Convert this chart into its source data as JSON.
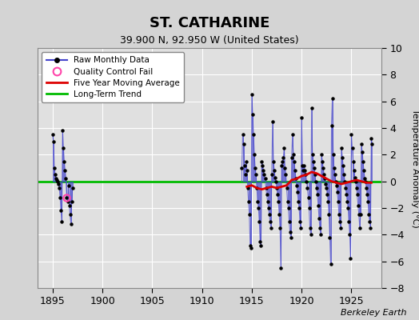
{
  "title": "ST. CATHARINE",
  "subtitle": "39.900 N, 92.950 W (United States)",
  "ylabel": "Temperature Anomaly (°C)",
  "credit": "Berkeley Earth",
  "xlim": [
    1893.5,
    1928.0
  ],
  "ylim": [
    -8,
    10
  ],
  "yticks": [
    -8,
    -6,
    -4,
    -2,
    0,
    2,
    4,
    6,
    8,
    10
  ],
  "xticks": [
    1895,
    1900,
    1905,
    1910,
    1915,
    1920,
    1925
  ],
  "bg_color": "#d4d4d4",
  "plot_bg_color": "#e0e0e0",
  "raw_color": "#4444cc",
  "ma_color": "#dd0000",
  "trend_color": "#00bb00",
  "qc_color": "#ff44aa",
  "raw_data": [
    [
      1895.0,
      3.5
    ],
    [
      1895.083,
      3.0
    ],
    [
      1895.167,
      1.0
    ],
    [
      1895.25,
      0.5
    ],
    [
      1895.333,
      0.2
    ],
    [
      1895.417,
      0.1
    ],
    [
      1895.5,
      0.0
    ],
    [
      1895.583,
      -0.2
    ],
    [
      1895.667,
      -0.5
    ],
    [
      1895.75,
      -1.2
    ],
    [
      1895.833,
      -2.2
    ],
    [
      1895.917,
      -3.0
    ],
    [
      1896.0,
      3.8
    ],
    [
      1896.083,
      2.5
    ],
    [
      1896.167,
      1.5
    ],
    [
      1896.25,
      0.8
    ],
    [
      1896.333,
      0.2
    ],
    [
      1896.417,
      -1.2
    ],
    [
      1896.5,
      -1.5
    ],
    [
      1896.583,
      -0.3
    ],
    [
      1896.667,
      -1.8
    ],
    [
      1896.75,
      -2.5
    ],
    [
      1896.833,
      -3.2
    ],
    [
      1896.917,
      -1.5
    ],
    [
      1897.0,
      -0.5
    ],
    [
      1914.0,
      1.0
    ],
    [
      1914.083,
      3.5
    ],
    [
      1914.167,
      2.8
    ],
    [
      1914.25,
      1.2
    ],
    [
      1914.333,
      0.5
    ],
    [
      1914.417,
      1.5
    ],
    [
      1914.5,
      0.8
    ],
    [
      1914.583,
      -0.5
    ],
    [
      1914.667,
      -1.5
    ],
    [
      1914.75,
      -2.5
    ],
    [
      1914.833,
      -4.8
    ],
    [
      1914.917,
      -5.0
    ],
    [
      1915.0,
      6.5
    ],
    [
      1915.083,
      5.0
    ],
    [
      1915.167,
      3.5
    ],
    [
      1915.25,
      2.0
    ],
    [
      1915.333,
      1.0
    ],
    [
      1915.417,
      0.5
    ],
    [
      1915.5,
      -0.5
    ],
    [
      1915.583,
      -1.5
    ],
    [
      1915.667,
      -2.0
    ],
    [
      1915.75,
      -3.0
    ],
    [
      1915.833,
      -4.5
    ],
    [
      1915.917,
      -4.8
    ],
    [
      1916.0,
      1.5
    ],
    [
      1916.083,
      1.2
    ],
    [
      1916.167,
      0.8
    ],
    [
      1916.25,
      0.5
    ],
    [
      1916.333,
      0.2
    ],
    [
      1916.417,
      -0.5
    ],
    [
      1916.5,
      -1.0
    ],
    [
      1916.583,
      -1.5
    ],
    [
      1916.667,
      -2.0
    ],
    [
      1916.75,
      -2.5
    ],
    [
      1916.833,
      -3.0
    ],
    [
      1916.917,
      -3.5
    ],
    [
      1917.0,
      0.5
    ],
    [
      1917.083,
      4.5
    ],
    [
      1917.167,
      1.5
    ],
    [
      1917.25,
      0.8
    ],
    [
      1917.333,
      0.3
    ],
    [
      1917.417,
      0.0
    ],
    [
      1917.5,
      -0.5
    ],
    [
      1917.583,
      -1.0
    ],
    [
      1917.667,
      -1.5
    ],
    [
      1917.75,
      -2.5
    ],
    [
      1917.833,
      -3.5
    ],
    [
      1917.917,
      -6.5
    ],
    [
      1918.0,
      1.2
    ],
    [
      1918.083,
      1.5
    ],
    [
      1918.167,
      1.8
    ],
    [
      1918.25,
      2.5
    ],
    [
      1918.333,
      1.0
    ],
    [
      1918.417,
      0.5
    ],
    [
      1918.5,
      -0.5
    ],
    [
      1918.583,
      -1.5
    ],
    [
      1918.667,
      -2.0
    ],
    [
      1918.75,
      -3.0
    ],
    [
      1918.833,
      -3.8
    ],
    [
      1918.917,
      -4.2
    ],
    [
      1919.0,
      1.8
    ],
    [
      1919.083,
      3.5
    ],
    [
      1919.167,
      2.0
    ],
    [
      1919.25,
      1.5
    ],
    [
      1919.333,
      0.8
    ],
    [
      1919.417,
      0.2
    ],
    [
      1919.5,
      -0.3
    ],
    [
      1919.583,
      -0.8
    ],
    [
      1919.667,
      -1.5
    ],
    [
      1919.75,
      -2.0
    ],
    [
      1919.833,
      -3.0
    ],
    [
      1919.917,
      -3.5
    ],
    [
      1920.0,
      4.8
    ],
    [
      1920.083,
      1.2
    ],
    [
      1920.167,
      0.8
    ],
    [
      1920.25,
      1.2
    ],
    [
      1920.333,
      0.8
    ],
    [
      1920.417,
      0.5
    ],
    [
      1920.5,
      0.0
    ],
    [
      1920.583,
      -0.5
    ],
    [
      1920.667,
      -1.2
    ],
    [
      1920.75,
      -2.0
    ],
    [
      1920.833,
      -3.5
    ],
    [
      1920.917,
      -4.0
    ],
    [
      1921.0,
      5.5
    ],
    [
      1921.083,
      2.0
    ],
    [
      1921.167,
      1.5
    ],
    [
      1921.25,
      1.0
    ],
    [
      1921.333,
      0.5
    ],
    [
      1921.417,
      0.0
    ],
    [
      1921.5,
      -0.5
    ],
    [
      1921.583,
      -1.0
    ],
    [
      1921.667,
      -1.8
    ],
    [
      1921.75,
      -2.8
    ],
    [
      1921.833,
      -3.5
    ],
    [
      1921.917,
      -4.0
    ],
    [
      1922.0,
      2.0
    ],
    [
      1922.083,
      1.5
    ],
    [
      1922.167,
      1.0
    ],
    [
      1922.25,
      0.5
    ],
    [
      1922.333,
      0.2
    ],
    [
      1922.417,
      -0.2
    ],
    [
      1922.5,
      -0.5
    ],
    [
      1922.583,
      -1.0
    ],
    [
      1922.667,
      -1.5
    ],
    [
      1922.75,
      -2.5
    ],
    [
      1922.833,
      -4.2
    ],
    [
      1922.917,
      -6.2
    ],
    [
      1923.0,
      4.2
    ],
    [
      1923.083,
      6.2
    ],
    [
      1923.167,
      2.0
    ],
    [
      1923.25,
      1.0
    ],
    [
      1923.333,
      0.5
    ],
    [
      1923.417,
      0.0
    ],
    [
      1923.5,
      -0.3
    ],
    [
      1923.583,
      -0.8
    ],
    [
      1923.667,
      -1.5
    ],
    [
      1923.75,
      -2.5
    ],
    [
      1923.833,
      -3.0
    ],
    [
      1923.917,
      -3.5
    ],
    [
      1924.0,
      2.5
    ],
    [
      1924.083,
      1.8
    ],
    [
      1924.167,
      1.2
    ],
    [
      1924.25,
      0.5
    ],
    [
      1924.333,
      0.0
    ],
    [
      1924.417,
      -0.5
    ],
    [
      1924.5,
      -1.0
    ],
    [
      1924.583,
      -1.5
    ],
    [
      1924.667,
      -2.0
    ],
    [
      1924.75,
      -3.0
    ],
    [
      1924.833,
      -4.0
    ],
    [
      1924.917,
      -5.8
    ],
    [
      1925.0,
      3.5
    ],
    [
      1925.083,
      2.5
    ],
    [
      1925.167,
      1.5
    ],
    [
      1925.25,
      0.8
    ],
    [
      1925.333,
      0.3
    ],
    [
      1925.417,
      0.0
    ],
    [
      1925.5,
      -0.5
    ],
    [
      1925.583,
      -1.0
    ],
    [
      1925.667,
      -1.8
    ],
    [
      1925.75,
      -2.5
    ],
    [
      1925.833,
      -3.5
    ],
    [
      1925.917,
      -2.5
    ],
    [
      1926.0,
      2.8
    ],
    [
      1926.083,
      2.2
    ],
    [
      1926.167,
      1.5
    ],
    [
      1926.25,
      0.8
    ],
    [
      1926.333,
      0.2
    ],
    [
      1926.417,
      0.0
    ],
    [
      1926.5,
      -0.5
    ],
    [
      1926.583,
      -1.0
    ],
    [
      1926.667,
      -1.5
    ],
    [
      1926.75,
      -2.5
    ],
    [
      1926.833,
      -3.0
    ],
    [
      1926.917,
      -3.5
    ],
    [
      1927.0,
      3.2
    ],
    [
      1927.083,
      2.8
    ]
  ],
  "segment_breaks": [
    24
  ],
  "qc_fail_points": [
    [
      1896.417,
      -1.2
    ]
  ],
  "moving_avg": [
    [
      1914.5,
      -0.4
    ],
    [
      1915.0,
      -0.3
    ],
    [
      1915.5,
      -0.5
    ],
    [
      1916.0,
      -0.6
    ],
    [
      1916.5,
      -0.5
    ],
    [
      1917.0,
      -0.4
    ],
    [
      1917.5,
      -0.5
    ],
    [
      1918.0,
      -0.4
    ],
    [
      1918.5,
      -0.3
    ],
    [
      1919.0,
      0.1
    ],
    [
      1919.5,
      0.2
    ],
    [
      1920.0,
      0.4
    ],
    [
      1920.5,
      0.5
    ],
    [
      1921.0,
      0.7
    ],
    [
      1921.5,
      0.6
    ],
    [
      1922.0,
      0.4
    ],
    [
      1922.5,
      0.2
    ],
    [
      1923.0,
      0.0
    ],
    [
      1923.5,
      -0.1
    ],
    [
      1924.0,
      -0.2
    ],
    [
      1924.5,
      -0.1
    ],
    [
      1925.0,
      0.0
    ],
    [
      1925.5,
      0.1
    ],
    [
      1926.0,
      0.0
    ],
    [
      1926.5,
      -0.1
    ],
    [
      1927.0,
      -0.1
    ]
  ],
  "trend_x": [
    1893,
    1928
  ],
  "trend_y": [
    0.0,
    0.0
  ]
}
